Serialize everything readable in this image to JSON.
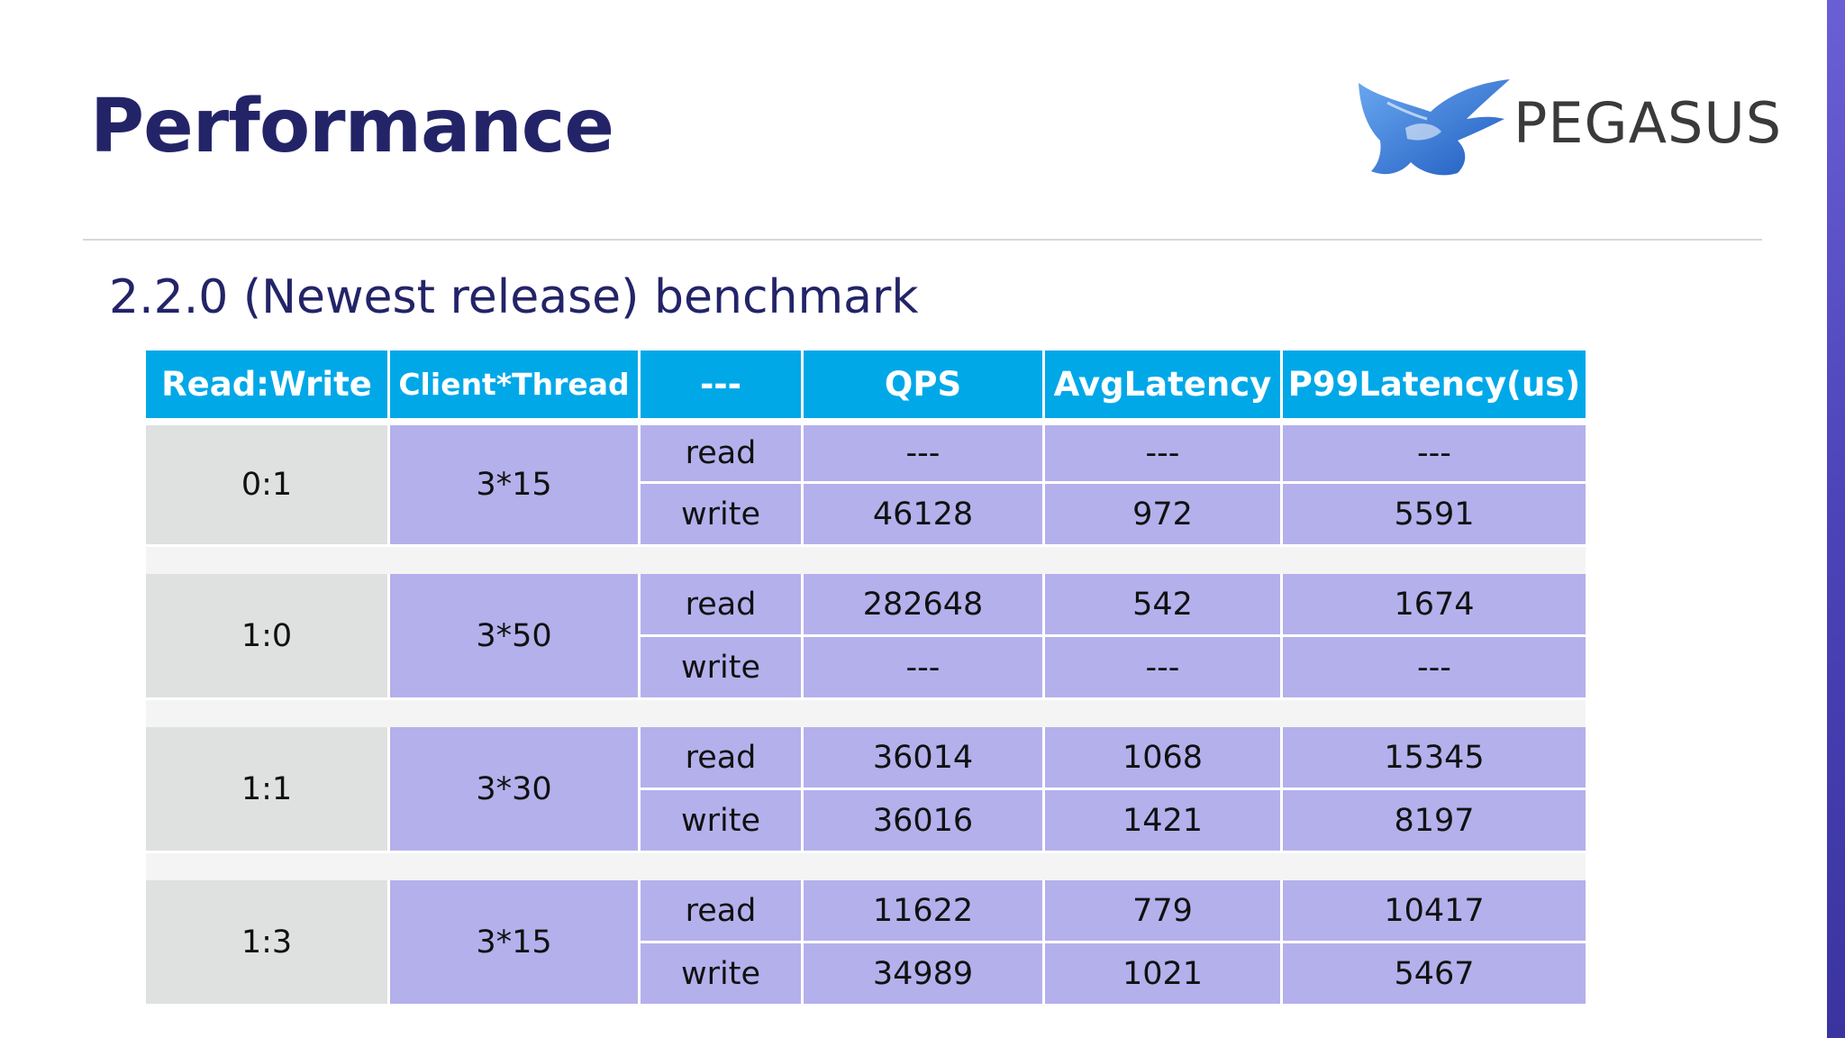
{
  "slide": {
    "title": "Performance",
    "subtitle": "2.2.0 (Newest release) benchmark"
  },
  "logo": {
    "text": "PEGASUS",
    "icon": "pegasus-wing-logo",
    "colors": {
      "wing_primary": "#2f6fd0",
      "wing_secondary": "#5a9ae8",
      "text": "#3a3a3a"
    }
  },
  "colors": {
    "title": "#232468",
    "header_bg": "#00a8e8",
    "header_text": "#ffffff",
    "ratio_cell_bg": "#dfe1e1",
    "data_cell_bg": "#b4b0ec",
    "right_bar": "#4c43b8"
  },
  "table": {
    "headers": [
      {
        "label": "Read:Write"
      },
      {
        "label": "Client*Thread"
      },
      {
        "label": "---"
      },
      {
        "label": "QPS"
      },
      {
        "label": "AvgLatency"
      },
      {
        "label": "P99Latency(us)"
      }
    ],
    "groups": [
      {
        "ratio": "0:1",
        "client_thread": "3*15",
        "rows": [
          {
            "op": "read",
            "qps": "---",
            "avg": "---",
            "p99": "---"
          },
          {
            "op": "write",
            "qps": "46128",
            "avg": "972",
            "p99": "5591"
          }
        ]
      },
      {
        "ratio": "1:0",
        "client_thread": "3*50",
        "rows": [
          {
            "op": "read",
            "qps": "282648",
            "avg": "542",
            "p99": "1674"
          },
          {
            "op": "write",
            "qps": "---",
            "avg": "---",
            "p99": "---"
          }
        ]
      },
      {
        "ratio": "1:1",
        "client_thread": "3*30",
        "rows": [
          {
            "op": "read",
            "qps": "36014",
            "avg": "1068",
            "p99": "15345"
          },
          {
            "op": "write",
            "qps": "36016",
            "avg": "1421",
            "p99": "8197"
          }
        ]
      },
      {
        "ratio": "1:3",
        "client_thread": "3*15",
        "rows": [
          {
            "op": "read",
            "qps": "11622",
            "avg": "779",
            "p99": "10417"
          },
          {
            "op": "write",
            "qps": "34989",
            "avg": "1021",
            "p99": "5467"
          }
        ]
      }
    ]
  }
}
